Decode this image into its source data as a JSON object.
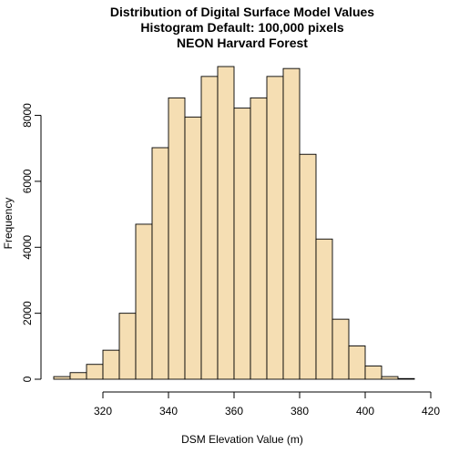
{
  "chart_data": {
    "type": "bar",
    "title": [
      "Distribution of Digital Surface Model Values",
      "Histogram Default: 100,000 pixels",
      "NEON Harvard Forest"
    ],
    "xlabel": "DSM Elevation Value (m)",
    "ylabel": "Frequency",
    "bin_width": 5,
    "bin_edges": [
      305,
      310,
      315,
      320,
      325,
      330,
      335,
      340,
      345,
      350,
      355,
      360,
      365,
      370,
      375,
      380,
      385,
      390,
      395,
      400,
      405,
      410,
      415
    ],
    "values": [
      80,
      200,
      450,
      880,
      2000,
      4700,
      7020,
      8530,
      7950,
      9180,
      9480,
      8220,
      8530,
      9180,
      9420,
      6820,
      4250,
      1820,
      1010,
      400,
      80,
      20
    ],
    "xlim": [
      305,
      420
    ],
    "ylim": [
      0,
      9480
    ],
    "x_ticks": [
      "320",
      "340",
      "360",
      "380",
      "400",
      "420"
    ],
    "y_ticks": [
      "0",
      "2000",
      "4000",
      "6000",
      "8000"
    ],
    "bar_fill": "#f5deb3",
    "bar_stroke": "#000000",
    "grid": false,
    "legend": "none"
  }
}
